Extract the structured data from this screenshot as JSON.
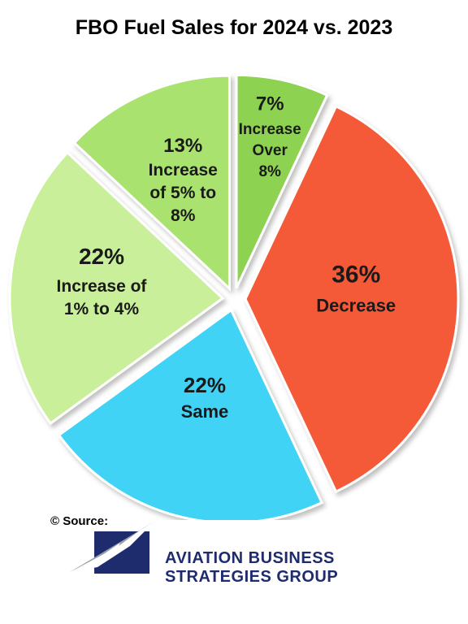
{
  "chart_data": {
    "type": "pie",
    "title": "FBO Fuel Sales for 2024 vs. 2023",
    "slices": [
      {
        "label": "Increase Over 8%",
        "percent_text": "7%",
        "label_lines": [
          "Increase",
          "Over",
          "8%"
        ],
        "value": 7,
        "color": "#8ed251"
      },
      {
        "label": "Decrease",
        "percent_text": "36%",
        "label_lines": [
          "Decrease"
        ],
        "value": 36,
        "color": "#f45a38"
      },
      {
        "label": "Same",
        "percent_text": "22%",
        "label_lines": [
          "Same"
        ],
        "value": 22,
        "color": "#3fd3f5"
      },
      {
        "label": "Increase of 1% to 4%",
        "percent_text": "22%",
        "label_lines": [
          "Increase of",
          "1% to 4%"
        ],
        "value": 22,
        "color": "#c9ef9a"
      },
      {
        "label": "Increase of 5% to 8%",
        "percent_text": "13%",
        "label_lines": [
          "Increase",
          "of 5% to",
          "8%"
        ],
        "value": 13,
        "color": "#a9e26e"
      }
    ]
  },
  "source": {
    "label": "© Source:"
  },
  "logo": {
    "line1": "Aviation Business",
    "line2": "Strategies Group",
    "colors": {
      "navy": "#1e2c6e",
      "gray": "#9aa0a6"
    }
  }
}
